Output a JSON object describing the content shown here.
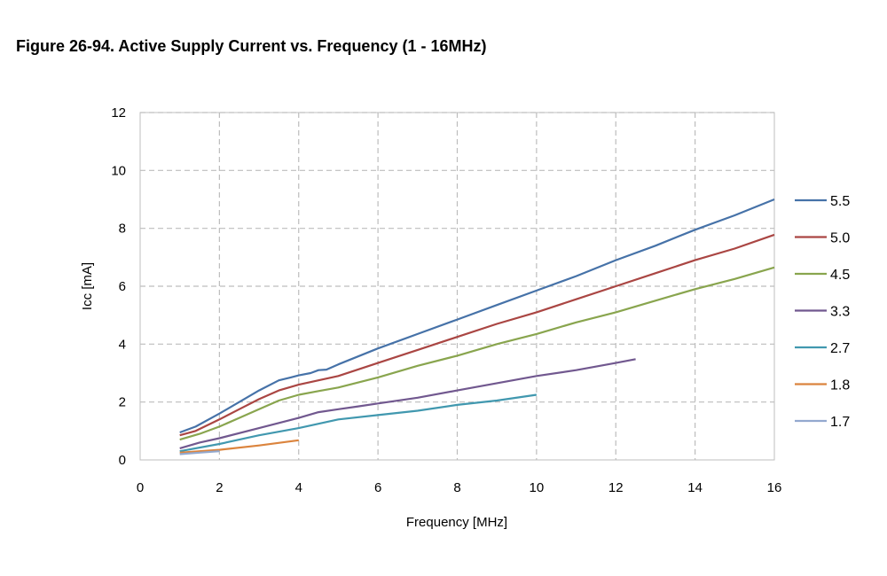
{
  "figure": {
    "title": "Figure 26-94. Active Supply Current vs. Frequency (1 - 16MHz)"
  },
  "chart_data": {
    "type": "line",
    "title": "Figure 26-94. Active Supply Current vs. Frequency (1 - 16MHz)",
    "xlabel": "Frequency [MHz]",
    "ylabel": "Icc [mA]",
    "xlim": [
      0,
      16
    ],
    "ylim": [
      0,
      12
    ],
    "xticks": [
      0,
      2,
      4,
      6,
      8,
      10,
      12,
      14,
      16
    ],
    "yticks": [
      0,
      2,
      4,
      6,
      8,
      10,
      12
    ],
    "grid": true,
    "legend_position": "right",
    "series": [
      {
        "name": "5.5",
        "color": "#4672a8",
        "points": [
          [
            1,
            0.95
          ],
          [
            1.4,
            1.15
          ],
          [
            2,
            1.6
          ],
          [
            2.5,
            2.0
          ],
          [
            3,
            2.4
          ],
          [
            3.5,
            2.75
          ],
          [
            3.8,
            2.85
          ],
          [
            4,
            2.92
          ],
          [
            4.3,
            3.0
          ],
          [
            4.5,
            3.1
          ],
          [
            4.7,
            3.12
          ],
          [
            5,
            3.3
          ],
          [
            6,
            3.85
          ],
          [
            7,
            4.35
          ],
          [
            8,
            4.85
          ],
          [
            9,
            5.35
          ],
          [
            10,
            5.85
          ],
          [
            11,
            6.35
          ],
          [
            12,
            6.9
          ],
          [
            13,
            7.4
          ],
          [
            14,
            7.95
          ],
          [
            15,
            8.45
          ],
          [
            16,
            9.0
          ]
        ]
      },
      {
        "name": "5.0",
        "color": "#aa4643",
        "points": [
          [
            1,
            0.85
          ],
          [
            1.4,
            1.0
          ],
          [
            2,
            1.4
          ],
          [
            2.5,
            1.75
          ],
          [
            3,
            2.1
          ],
          [
            3.5,
            2.4
          ],
          [
            4,
            2.6
          ],
          [
            4.5,
            2.75
          ],
          [
            5,
            2.9
          ],
          [
            6,
            3.35
          ],
          [
            7,
            3.8
          ],
          [
            8,
            4.25
          ],
          [
            9,
            4.7
          ],
          [
            10,
            5.1
          ],
          [
            11,
            5.55
          ],
          [
            12,
            6.0
          ],
          [
            13,
            6.45
          ],
          [
            14,
            6.9
          ],
          [
            15,
            7.3
          ],
          [
            16,
            7.78
          ]
        ]
      },
      {
        "name": "4.5",
        "color": "#89a54e",
        "points": [
          [
            1,
            0.7
          ],
          [
            1.5,
            0.9
          ],
          [
            2,
            1.15
          ],
          [
            2.5,
            1.45
          ],
          [
            3,
            1.75
          ],
          [
            3.5,
            2.05
          ],
          [
            4,
            2.25
          ],
          [
            4.5,
            2.38
          ],
          [
            5,
            2.5
          ],
          [
            6,
            2.85
          ],
          [
            7,
            3.25
          ],
          [
            8,
            3.6
          ],
          [
            9,
            4.0
          ],
          [
            10,
            4.35
          ],
          [
            11,
            4.75
          ],
          [
            12,
            5.1
          ],
          [
            13,
            5.5
          ],
          [
            14,
            5.9
          ],
          [
            15,
            6.25
          ],
          [
            16,
            6.65
          ]
        ]
      },
      {
        "name": "3.3",
        "color": "#71588f",
        "points": [
          [
            1,
            0.4
          ],
          [
            1.5,
            0.6
          ],
          [
            2,
            0.75
          ],
          [
            3,
            1.1
          ],
          [
            4,
            1.45
          ],
          [
            4.5,
            1.65
          ],
          [
            5,
            1.75
          ],
          [
            5.5,
            1.85
          ],
          [
            6,
            1.95
          ],
          [
            7,
            2.15
          ],
          [
            8,
            2.4
          ],
          [
            9,
            2.65
          ],
          [
            10,
            2.9
          ],
          [
            11,
            3.1
          ],
          [
            12,
            3.35
          ],
          [
            12.5,
            3.48
          ]
        ]
      },
      {
        "name": "2.7",
        "color": "#4198af",
        "points": [
          [
            1,
            0.3
          ],
          [
            2,
            0.55
          ],
          [
            3,
            0.85
          ],
          [
            4,
            1.1
          ],
          [
            4.5,
            1.25
          ],
          [
            5,
            1.4
          ],
          [
            6,
            1.55
          ],
          [
            7,
            1.7
          ],
          [
            8,
            1.9
          ],
          [
            9,
            2.05
          ],
          [
            10,
            2.25
          ]
        ]
      },
      {
        "name": "1.8",
        "color": "#db843d",
        "points": [
          [
            1,
            0.25
          ],
          [
            2,
            0.35
          ],
          [
            3,
            0.5
          ],
          [
            4,
            0.68
          ]
        ]
      },
      {
        "name": "1.7",
        "color": "#93a9cf",
        "points": [
          [
            1,
            0.2
          ],
          [
            1.5,
            0.25
          ],
          [
            2,
            0.3
          ]
        ]
      }
    ]
  }
}
